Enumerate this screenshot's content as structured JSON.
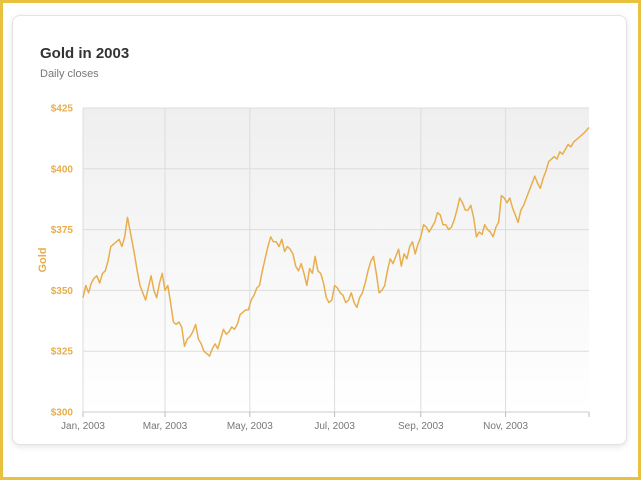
{
  "chart_data": {
    "type": "line",
    "title": "Gold in 2003",
    "subtitle": "Daily closes",
    "ylabel": "Gold",
    "xlabel": "",
    "ylim": [
      300,
      425
    ],
    "xlim": [
      "2003-01-01",
      "2003-12-31"
    ],
    "y_ticks": [
      300,
      325,
      350,
      375,
      400,
      425
    ],
    "y_tick_labels": [
      "$300",
      "$325",
      "$350",
      "$375",
      "$400",
      "$425"
    ],
    "x_ticks": [
      "2003-01-01",
      "2003-03-01",
      "2003-05-01",
      "2003-07-01",
      "2003-09-01",
      "2003-11-01"
    ],
    "x_tick_labels": [
      "Jan, 2003",
      "Mar, 2003",
      "May, 2003",
      "Jul, 2003",
      "Sep, 2003",
      "Nov, 2003"
    ],
    "grid": true,
    "accent_color": "#E8AE4C",
    "series": [
      {
        "x": [
          "2003-01-01",
          "2003-01-03",
          "2003-01-05",
          "2003-01-07",
          "2003-01-09",
          "2003-01-11",
          "2003-01-13",
          "2003-01-15",
          "2003-01-17",
          "2003-01-19",
          "2003-01-21",
          "2003-01-23",
          "2003-01-25",
          "2003-01-27",
          "2003-01-29",
          "2003-01-31",
          "2003-02-02",
          "2003-02-04",
          "2003-02-05",
          "2003-02-07",
          "2003-02-09",
          "2003-02-11",
          "2003-02-13",
          "2003-02-15",
          "2003-02-17",
          "2003-02-19",
          "2003-02-21",
          "2003-02-23",
          "2003-02-25",
          "2003-02-27",
          "2003-03-01",
          "2003-03-03",
          "2003-03-05",
          "2003-03-07",
          "2003-03-09",
          "2003-03-11",
          "2003-03-13",
          "2003-03-15",
          "2003-03-17",
          "2003-03-19",
          "2003-03-21",
          "2003-03-23",
          "2003-03-25",
          "2003-03-27",
          "2003-03-29",
          "2003-03-31",
          "2003-04-02",
          "2003-04-04",
          "2003-04-06",
          "2003-04-08",
          "2003-04-10",
          "2003-04-12",
          "2003-04-14",
          "2003-04-16",
          "2003-04-18",
          "2003-04-20",
          "2003-04-22",
          "2003-04-24",
          "2003-04-26",
          "2003-04-28",
          "2003-04-30",
          "2003-05-02",
          "2003-05-04",
          "2003-05-06",
          "2003-05-08",
          "2003-05-10",
          "2003-05-12",
          "2003-05-14",
          "2003-05-16",
          "2003-05-18",
          "2003-05-20",
          "2003-05-22",
          "2003-05-24",
          "2003-05-26",
          "2003-05-28",
          "2003-05-30",
          "2003-06-01",
          "2003-06-03",
          "2003-06-05",
          "2003-06-07",
          "2003-06-09",
          "2003-06-11",
          "2003-06-13",
          "2003-06-15",
          "2003-06-17",
          "2003-06-19",
          "2003-06-21",
          "2003-06-23",
          "2003-06-25",
          "2003-06-27",
          "2003-06-29",
          "2003-07-01",
          "2003-07-03",
          "2003-07-05",
          "2003-07-07",
          "2003-07-09",
          "2003-07-11",
          "2003-07-13",
          "2003-07-15",
          "2003-07-17",
          "2003-07-19",
          "2003-07-21",
          "2003-07-23",
          "2003-07-25",
          "2003-07-27",
          "2003-07-29",
          "2003-07-31",
          "2003-08-02",
          "2003-08-04",
          "2003-08-06",
          "2003-08-08",
          "2003-08-10",
          "2003-08-12",
          "2003-08-14",
          "2003-08-16",
          "2003-08-18",
          "2003-08-20",
          "2003-08-22",
          "2003-08-24",
          "2003-08-26",
          "2003-08-28",
          "2003-08-30",
          "2003-09-01",
          "2003-09-03",
          "2003-09-05",
          "2003-09-07",
          "2003-09-09",
          "2003-09-11",
          "2003-09-13",
          "2003-09-15",
          "2003-09-17",
          "2003-09-19",
          "2003-09-21",
          "2003-09-23",
          "2003-09-25",
          "2003-09-27",
          "2003-09-29",
          "2003-10-01",
          "2003-10-03",
          "2003-10-05",
          "2003-10-07",
          "2003-10-09",
          "2003-10-11",
          "2003-10-13",
          "2003-10-15",
          "2003-10-17",
          "2003-10-19",
          "2003-10-21",
          "2003-10-23",
          "2003-10-25",
          "2003-10-27",
          "2003-10-29",
          "2003-10-31",
          "2003-11-02",
          "2003-11-04",
          "2003-11-06",
          "2003-11-08",
          "2003-11-10",
          "2003-11-12",
          "2003-11-14",
          "2003-11-16",
          "2003-11-18",
          "2003-11-20",
          "2003-11-22",
          "2003-11-24",
          "2003-11-26",
          "2003-11-28",
          "2003-11-30",
          "2003-12-02",
          "2003-12-04",
          "2003-12-06",
          "2003-12-08",
          "2003-12-10",
          "2003-12-12",
          "2003-12-14",
          "2003-12-16",
          "2003-12-18",
          "2003-12-20",
          "2003-12-22",
          "2003-12-24",
          "2003-12-26",
          "2003-12-28",
          "2003-12-31"
        ],
        "values": [
          347,
          352,
          349,
          353,
          355,
          356,
          353,
          357,
          358,
          362,
          368,
          369,
          370,
          371,
          368,
          372,
          380,
          374,
          371,
          365,
          358,
          352,
          349,
          346,
          351,
          356,
          350,
          347,
          353,
          357,
          350,
          352,
          345,
          337,
          336,
          337,
          335,
          327,
          330,
          331,
          333,
          336,
          330,
          328,
          325,
          324,
          323,
          326,
          328,
          326,
          330,
          334,
          332,
          333,
          335,
          334,
          336,
          340,
          341,
          342,
          342,
          346,
          348,
          351,
          352,
          358,
          363,
          368,
          372,
          370,
          370,
          368,
          371,
          366,
          368,
          367,
          365,
          360,
          358,
          361,
          357,
          352,
          359,
          357,
          364,
          358,
          357,
          353,
          347,
          345,
          346,
          352,
          351,
          349,
          348,
          345,
          346,
          349,
          345,
          343,
          347,
          349,
          353,
          358,
          362,
          364,
          357,
          349,
          350,
          352,
          358,
          363,
          361,
          364,
          367,
          360,
          365,
          363,
          368,
          370,
          365,
          369,
          372,
          377,
          376,
          374,
          376,
          378,
          382,
          381,
          377,
          377,
          375,
          376,
          379,
          383,
          388,
          386,
          383,
          383,
          385,
          380,
          372,
          374,
          373,
          377,
          375,
          374,
          372,
          376,
          378,
          389,
          388,
          386,
          388,
          384,
          381,
          378,
          383,
          385,
          388,
          391,
          394,
          397,
          394,
          392,
          396,
          399,
          403,
          404,
          405,
          404,
          407,
          406,
          408,
          410,
          409,
          411,
          412,
          413,
          414,
          415,
          417
        ]
      }
    ]
  }
}
